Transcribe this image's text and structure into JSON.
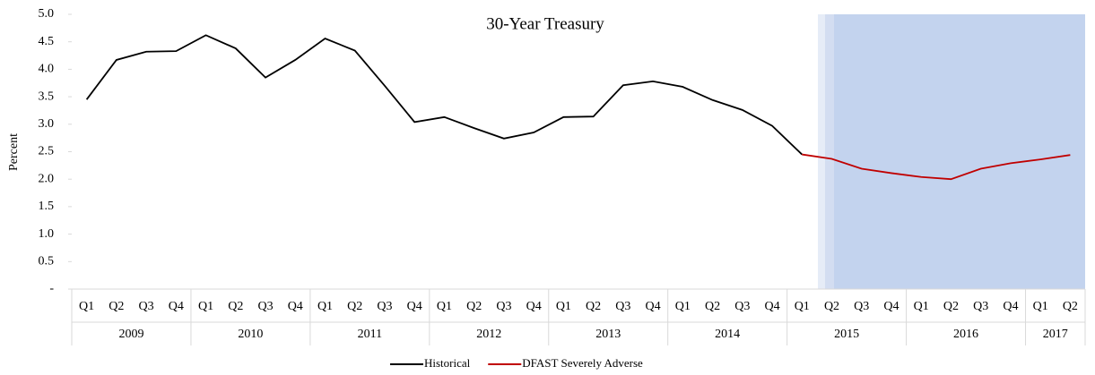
{
  "chart_data": {
    "type": "line",
    "title": "30-Year Treasury",
    "y_label": "Percent",
    "groups": [
      {
        "name": "2009",
        "categories": [
          "Q1",
          "Q2",
          "Q3",
          "Q4"
        ]
      },
      {
        "name": "2010",
        "categories": [
          "Q1",
          "Q2",
          "Q3",
          "Q4"
        ]
      },
      {
        "name": "2011",
        "categories": [
          "Q1",
          "Q2",
          "Q3",
          "Q4"
        ]
      },
      {
        "name": "2012",
        "categories": [
          "Q1",
          "Q2",
          "Q3",
          "Q4"
        ]
      },
      {
        "name": "2013",
        "categories": [
          "Q1",
          "Q2",
          "Q3",
          "Q4"
        ]
      },
      {
        "name": "2014",
        "categories": [
          "Q1",
          "Q2",
          "Q3",
          "Q4"
        ]
      },
      {
        "name": "2015",
        "categories": [
          "Q1",
          "Q2",
          "Q3",
          "Q4"
        ]
      },
      {
        "name": "2016",
        "categories": [
          "Q1",
          "Q2",
          "Q3",
          "Q4"
        ]
      },
      {
        "name": "2017",
        "categories": [
          "Q1",
          "Q2"
        ]
      }
    ],
    "series": [
      {
        "name": "Historical",
        "color": "#000000",
        "values": [
          3.45,
          4.17,
          4.32,
          4.33,
          4.62,
          4.38,
          3.85,
          4.17,
          4.56,
          4.34,
          3.7,
          3.04,
          3.13,
          2.93,
          2.74,
          2.85,
          3.13,
          3.14,
          3.71,
          3.78,
          3.68,
          3.44,
          3.26,
          2.97,
          2.45,
          null,
          null,
          null,
          null,
          null,
          null,
          null,
          null,
          null
        ]
      },
      {
        "name": "DFAST Severely Adverse",
        "color": "#c00000",
        "values": [
          null,
          null,
          null,
          null,
          null,
          null,
          null,
          null,
          null,
          null,
          null,
          null,
          null,
          null,
          null,
          null,
          null,
          null,
          null,
          null,
          null,
          null,
          null,
          null,
          2.45,
          2.37,
          2.19,
          2.11,
          2.04,
          2.0,
          2.19,
          2.29,
          2.36,
          2.44
        ]
      }
    ],
    "ylim": [
      0,
      5
    ],
    "yticks": [
      {
        "value": 0,
        "label": "-"
      },
      0.5,
      {
        "value": 1,
        "label": "1.0"
      },
      1.5,
      {
        "value": 2,
        "label": "2.0"
      },
      2.5,
      {
        "value": 3,
        "label": "3.0"
      },
      3.5,
      {
        "value": 4,
        "label": "4.0"
      },
      4.5,
      {
        "value": 5,
        "label": "5.0"
      }
    ],
    "legend": "bottom"
  }
}
